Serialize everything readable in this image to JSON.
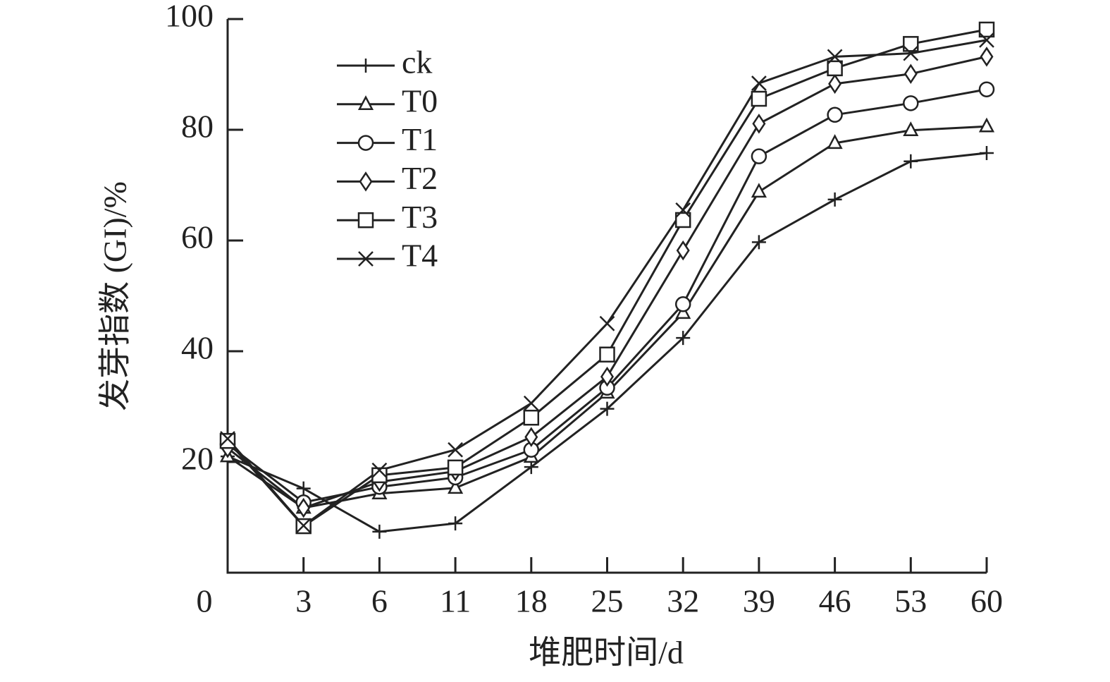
{
  "chart_data": {
    "type": "line",
    "x_label": "堆肥时间/d",
    "y_label": "发芽指数 (GI)/%",
    "categories": [
      "0",
      "3",
      "6",
      "11",
      "18",
      "25",
      "32",
      "39",
      "46",
      "53",
      "60"
    ],
    "ylim": [
      0,
      100
    ],
    "yticks": [
      20,
      40,
      60,
      80,
      100
    ],
    "legend": "upper left",
    "series": [
      {
        "name": "ck",
        "color": "#222222",
        "marker": "plus",
        "values": [
          21,
          15.2,
          7.4,
          8.9,
          19.1,
          29.6,
          42.4,
          59.7,
          67.4,
          74.3,
          75.8
        ]
      },
      {
        "name": "T0",
        "color": "#222222",
        "marker": "triangle",
        "values": [
          21,
          11.7,
          14.3,
          15.3,
          20.9,
          32.5,
          46.9,
          68.8,
          77.6,
          79.9,
          80.6
        ]
      },
      {
        "name": "T1",
        "color": "#222222",
        "marker": "circle",
        "values": [
          23.2,
          12.7,
          15.5,
          17.2,
          22.2,
          33.4,
          48.5,
          75.2,
          82.7,
          84.8,
          87.3
        ]
      },
      {
        "name": "T2",
        "color": "#222222",
        "marker": "diamond",
        "values": [
          22.5,
          11.7,
          16.4,
          18.3,
          24.5,
          35.4,
          58.2,
          81.1,
          88.3,
          90.1,
          93.2
        ]
      },
      {
        "name": "T3",
        "color": "#222222",
        "marker": "square",
        "values": [
          23.8,
          8.4,
          17.6,
          19,
          28,
          39.4,
          63.7,
          85.6,
          91.1,
          95.5,
          98.1
        ]
      },
      {
        "name": "T4",
        "color": "#222222",
        "marker": "x",
        "values": [
          24.2,
          8.5,
          18.5,
          22.2,
          30.6,
          45,
          65.5,
          88.4,
          93.2,
          93.8,
          96.2
        ]
      }
    ]
  }
}
